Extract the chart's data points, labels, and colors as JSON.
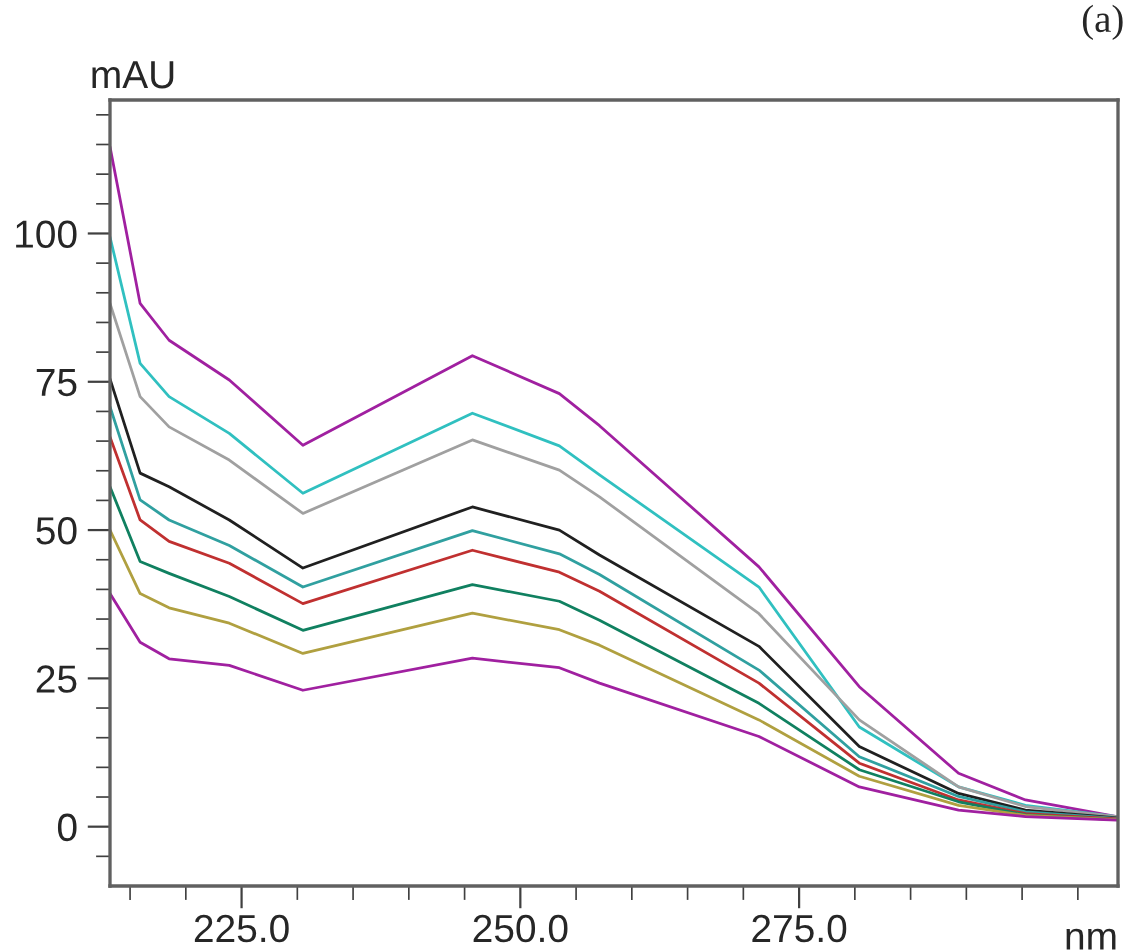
{
  "chart_data": {
    "type": "line",
    "xlabel": "nm",
    "ylabel": "mAU",
    "annotations": [
      "(a)"
    ],
    "x": [
      213.2,
      215.9,
      218.5,
      223.9,
      230.5,
      245.7,
      253.5,
      257.1,
      271.4,
      280.4,
      289.3,
      295.3,
      303.5
    ],
    "series": [
      {
        "color": "#a020a0",
        "values": [
          114.6,
          88.2,
          82,
          75.3,
          64.3,
          79.4,
          73.0,
          67.6,
          43.8,
          23.6,
          9.0,
          4.5,
          1.7
        ]
      },
      {
        "color": "#30c0c0",
        "values": [
          99.4,
          78.1,
          72.5,
          66.3,
          56.2,
          69.7,
          64.2,
          59.3,
          40.4,
          16.8,
          6.7,
          3.6,
          1.7
        ]
      },
      {
        "color": "#a0a0a0",
        "values": [
          88.2,
          72.5,
          67.4,
          61.8,
          52.8,
          65.2,
          60.1,
          55.6,
          35.9,
          18.0,
          6.7,
          3.4,
          1.7
        ]
      },
      {
        "color": "#202020",
        "values": [
          75.5,
          59.6,
          57.3,
          51.7,
          43.6,
          53.9,
          50.0,
          45.8,
          30.4,
          13.5,
          5.6,
          2.8,
          1.5
        ]
      },
      {
        "color": "#30a0a0",
        "values": [
          70.8,
          55.1,
          51.7,
          47.4,
          40.4,
          49.9,
          46.0,
          42.5,
          26.4,
          11.8,
          5.1,
          2.5,
          1.4
        ]
      },
      {
        "color": "#c03030",
        "values": [
          65.7,
          51.7,
          48.1,
          44.4,
          37.6,
          46.6,
          42.9,
          39.7,
          24.2,
          10.7,
          4.5,
          2.2,
          1.3
        ]
      },
      {
        "color": "#108060",
        "values": [
          57.3,
          44.7,
          42.7,
          38.8,
          33.1,
          40.8,
          38.0,
          34.8,
          20.8,
          9.6,
          4.2,
          2.0,
          1.2
        ]
      },
      {
        "color": "#b0a040",
        "values": [
          50.0,
          39.3,
          36.9,
          34.3,
          29.2,
          36.0,
          33.2,
          30.6,
          18.0,
          8.5,
          3.6,
          1.9,
          1.2
        ]
      },
      {
        "color": "#a020a0",
        "values": [
          39.3,
          31.1,
          28.3,
          27.2,
          23.0,
          28.4,
          26.8,
          24.2,
          15.2,
          6.7,
          2.8,
          1.7,
          1.1
        ]
      }
    ],
    "xlim": [
      213.2,
      303.6
    ],
    "ylim": [
      -10,
      122.5
    ],
    "xticks": [
      {
        "value": 215,
        "label": null
      },
      {
        "value": 220,
        "label": null
      },
      {
        "value": 225,
        "label": "225.0"
      },
      {
        "value": 230,
        "label": null
      },
      {
        "value": 235,
        "label": null
      },
      {
        "value": 240,
        "label": null
      },
      {
        "value": 245,
        "label": null
      },
      {
        "value": 250,
        "label": "250.0"
      },
      {
        "value": 255,
        "label": null
      },
      {
        "value": 260,
        "label": null
      },
      {
        "value": 265,
        "label": null
      },
      {
        "value": 270,
        "label": null
      },
      {
        "value": 275,
        "label": "275.0"
      },
      {
        "value": 280,
        "label": null
      },
      {
        "value": 285,
        "label": null
      },
      {
        "value": 290,
        "label": null
      },
      {
        "value": 295,
        "label": null
      },
      {
        "value": 300,
        "label": null
      }
    ],
    "yticks": [
      {
        "value": -5,
        "label": null
      },
      0,
      {
        "value": 5,
        "label": null
      },
      {
        "value": 10,
        "label": null
      },
      {
        "value": 15,
        "label": null
      },
      {
        "value": 20,
        "label": null
      },
      25,
      {
        "value": 30,
        "label": null
      },
      {
        "value": 35,
        "label": null
      },
      {
        "value": 40,
        "label": null
      },
      {
        "value": 45,
        "label": null
      },
      50,
      {
        "value": 55,
        "label": null
      },
      {
        "value": 60,
        "label": null
      },
      {
        "value": 65,
        "label": null
      },
      {
        "value": 70,
        "label": null
      },
      75,
      {
        "value": 80,
        "label": null
      },
      {
        "value": 85,
        "label": null
      },
      {
        "value": 90,
        "label": null
      },
      {
        "value": 95,
        "label": null
      },
      100,
      {
        "value": 105,
        "label": null
      },
      {
        "value": 110,
        "label": null
      },
      {
        "value": 115,
        "label": null
      },
      {
        "value": 120,
        "label": null
      }
    ],
    "grid": false,
    "legend": false,
    "line_style": "solid",
    "marker": "none"
  }
}
